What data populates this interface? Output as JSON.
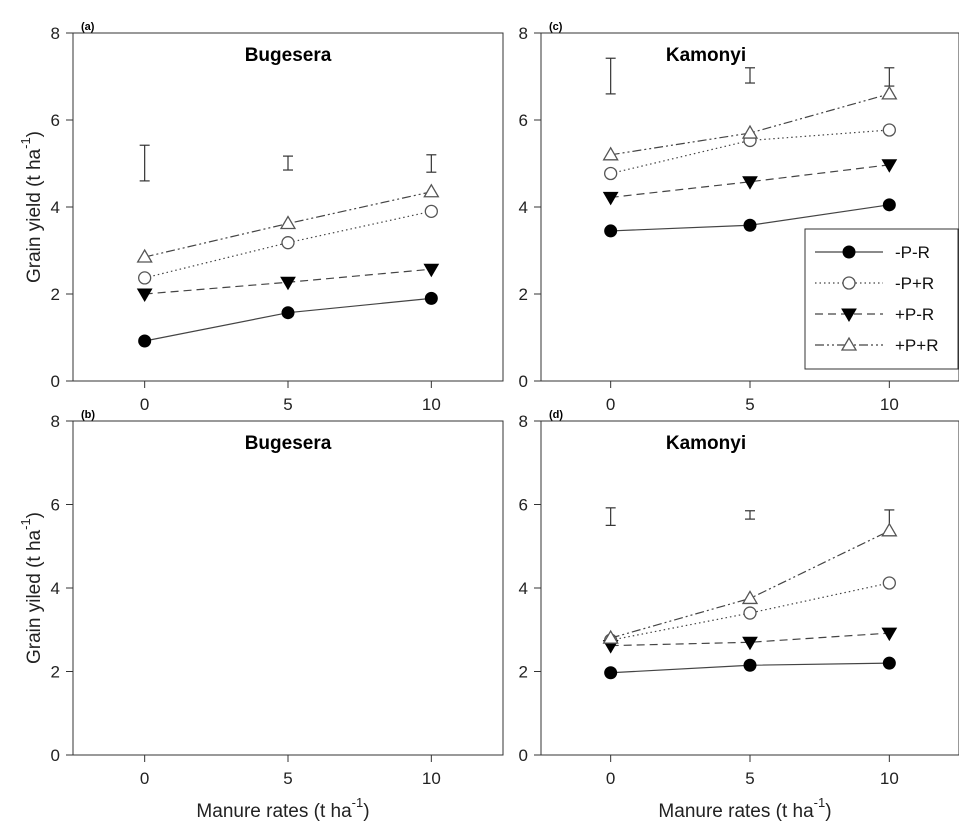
{
  "chart_data": [
    {
      "panel": "(a)",
      "title": "Bugesera",
      "type": "line",
      "x": [
        0,
        5,
        10
      ],
      "xlim": [
        -2.5,
        12.5
      ],
      "ylim": [
        0,
        8
      ],
      "xticks": [
        "0",
        "5",
        "10"
      ],
      "yticks": [
        "0",
        "2",
        "4",
        "6",
        "8"
      ],
      "ylabel": "Grain yield (t ha",
      "ylabel_sup": "-1",
      "ylabel_close": ")",
      "xlabel": "",
      "series": [
        {
          "name": "-P-R",
          "values": [
            0.92,
            1.57,
            1.9
          ]
        },
        {
          "name": "-P+R",
          "values": [
            2.37,
            3.18,
            3.9
          ]
        },
        {
          "name": "+P-R",
          "values": [
            2.0,
            2.27,
            2.57
          ]
        },
        {
          "name": "+P+R",
          "values": [
            2.85,
            3.62,
            4.35
          ]
        }
      ],
      "error_bars": [
        [
          4.6,
          5.42
        ],
        [
          4.85,
          5.17
        ],
        [
          4.8,
          5.2
        ]
      ]
    },
    {
      "panel": "(c)",
      "title": "Kamonyi",
      "type": "line",
      "x": [
        0,
        5,
        10
      ],
      "xlim": [
        -2.5,
        12.5
      ],
      "ylim": [
        0,
        8
      ],
      "xticks": [
        "0",
        "5",
        "10"
      ],
      "yticks": [
        "0",
        "2",
        "4",
        "6",
        "8"
      ],
      "ylabel": "",
      "xlabel": "",
      "series": [
        {
          "name": "-P-R",
          "values": [
            3.45,
            3.58,
            4.05
          ]
        },
        {
          "name": "-P+R",
          "values": [
            4.77,
            5.53,
            5.77
          ]
        },
        {
          "name": "+P-R",
          "values": [
            4.22,
            4.58,
            4.97
          ]
        },
        {
          "name": "+P+R",
          "values": [
            5.2,
            5.7,
            6.6
          ]
        }
      ],
      "error_bars": [
        [
          6.6,
          7.42
        ],
        [
          6.85,
          7.2
        ],
        [
          6.78,
          7.2
        ]
      ],
      "legend": "right-middle"
    },
    {
      "panel": "(b)",
      "title": "Bugesera",
      "type": "line",
      "x": [
        0,
        5,
        10
      ],
      "xlim": [
        -2.5,
        12.5
      ],
      "ylim": [
        0,
        8
      ],
      "xticks": [
        "0",
        "5",
        "10"
      ],
      "yticks": [
        "0",
        "2",
        "4",
        "6",
        "8"
      ],
      "ylabel": "Grain yiled (t ha",
      "ylabel_sup": "-1",
      "ylabel_close": ")",
      "xlabel": "Manure rates (t ha",
      "xlabel_sup": "-1",
      "xlabel_close": ")",
      "series": [],
      "error_bars": []
    },
    {
      "panel": "(d)",
      "title": "Kamonyi",
      "type": "line",
      "x": [
        0,
        5,
        10
      ],
      "xlim": [
        -2.5,
        12.5
      ],
      "ylim": [
        0,
        8
      ],
      "xticks": [
        "0",
        "5",
        "10"
      ],
      "yticks": [
        "0",
        "2",
        "4",
        "6",
        "8"
      ],
      "ylabel": "",
      "xlabel": "Manure rates (t ha",
      "xlabel_sup": "-1",
      "xlabel_close": ")",
      "series": [
        {
          "name": "-P-R",
          "values": [
            1.97,
            2.15,
            2.2
          ]
        },
        {
          "name": "-P+R",
          "values": [
            2.75,
            3.4,
            4.12
          ]
        },
        {
          "name": "+P-R",
          "values": [
            2.62,
            2.7,
            2.92
          ]
        },
        {
          "name": "+P+R",
          "values": [
            2.8,
            3.75,
            5.37
          ]
        }
      ],
      "error_bars": [
        [
          5.5,
          5.92
        ],
        [
          5.65,
          5.85
        ],
        [
          5.25,
          5.87
        ]
      ]
    }
  ],
  "series_styles": {
    "-P-R": {
      "marker": "filled-circle",
      "dash": "solid",
      "color": "#000000"
    },
    "-P+R": {
      "marker": "open-circle",
      "dash": "dotted",
      "color": "#000000"
    },
    "+P-R": {
      "marker": "filled-triangle-down",
      "dash": "dashed",
      "color": "#000000"
    },
    "+P+R": {
      "marker": "open-triangle-up",
      "dash": "dash-dot-dot",
      "color": "#000000"
    }
  },
  "legend_entries": [
    "-P-R",
    "-P+R",
    "+P-R",
    "+P+R"
  ]
}
